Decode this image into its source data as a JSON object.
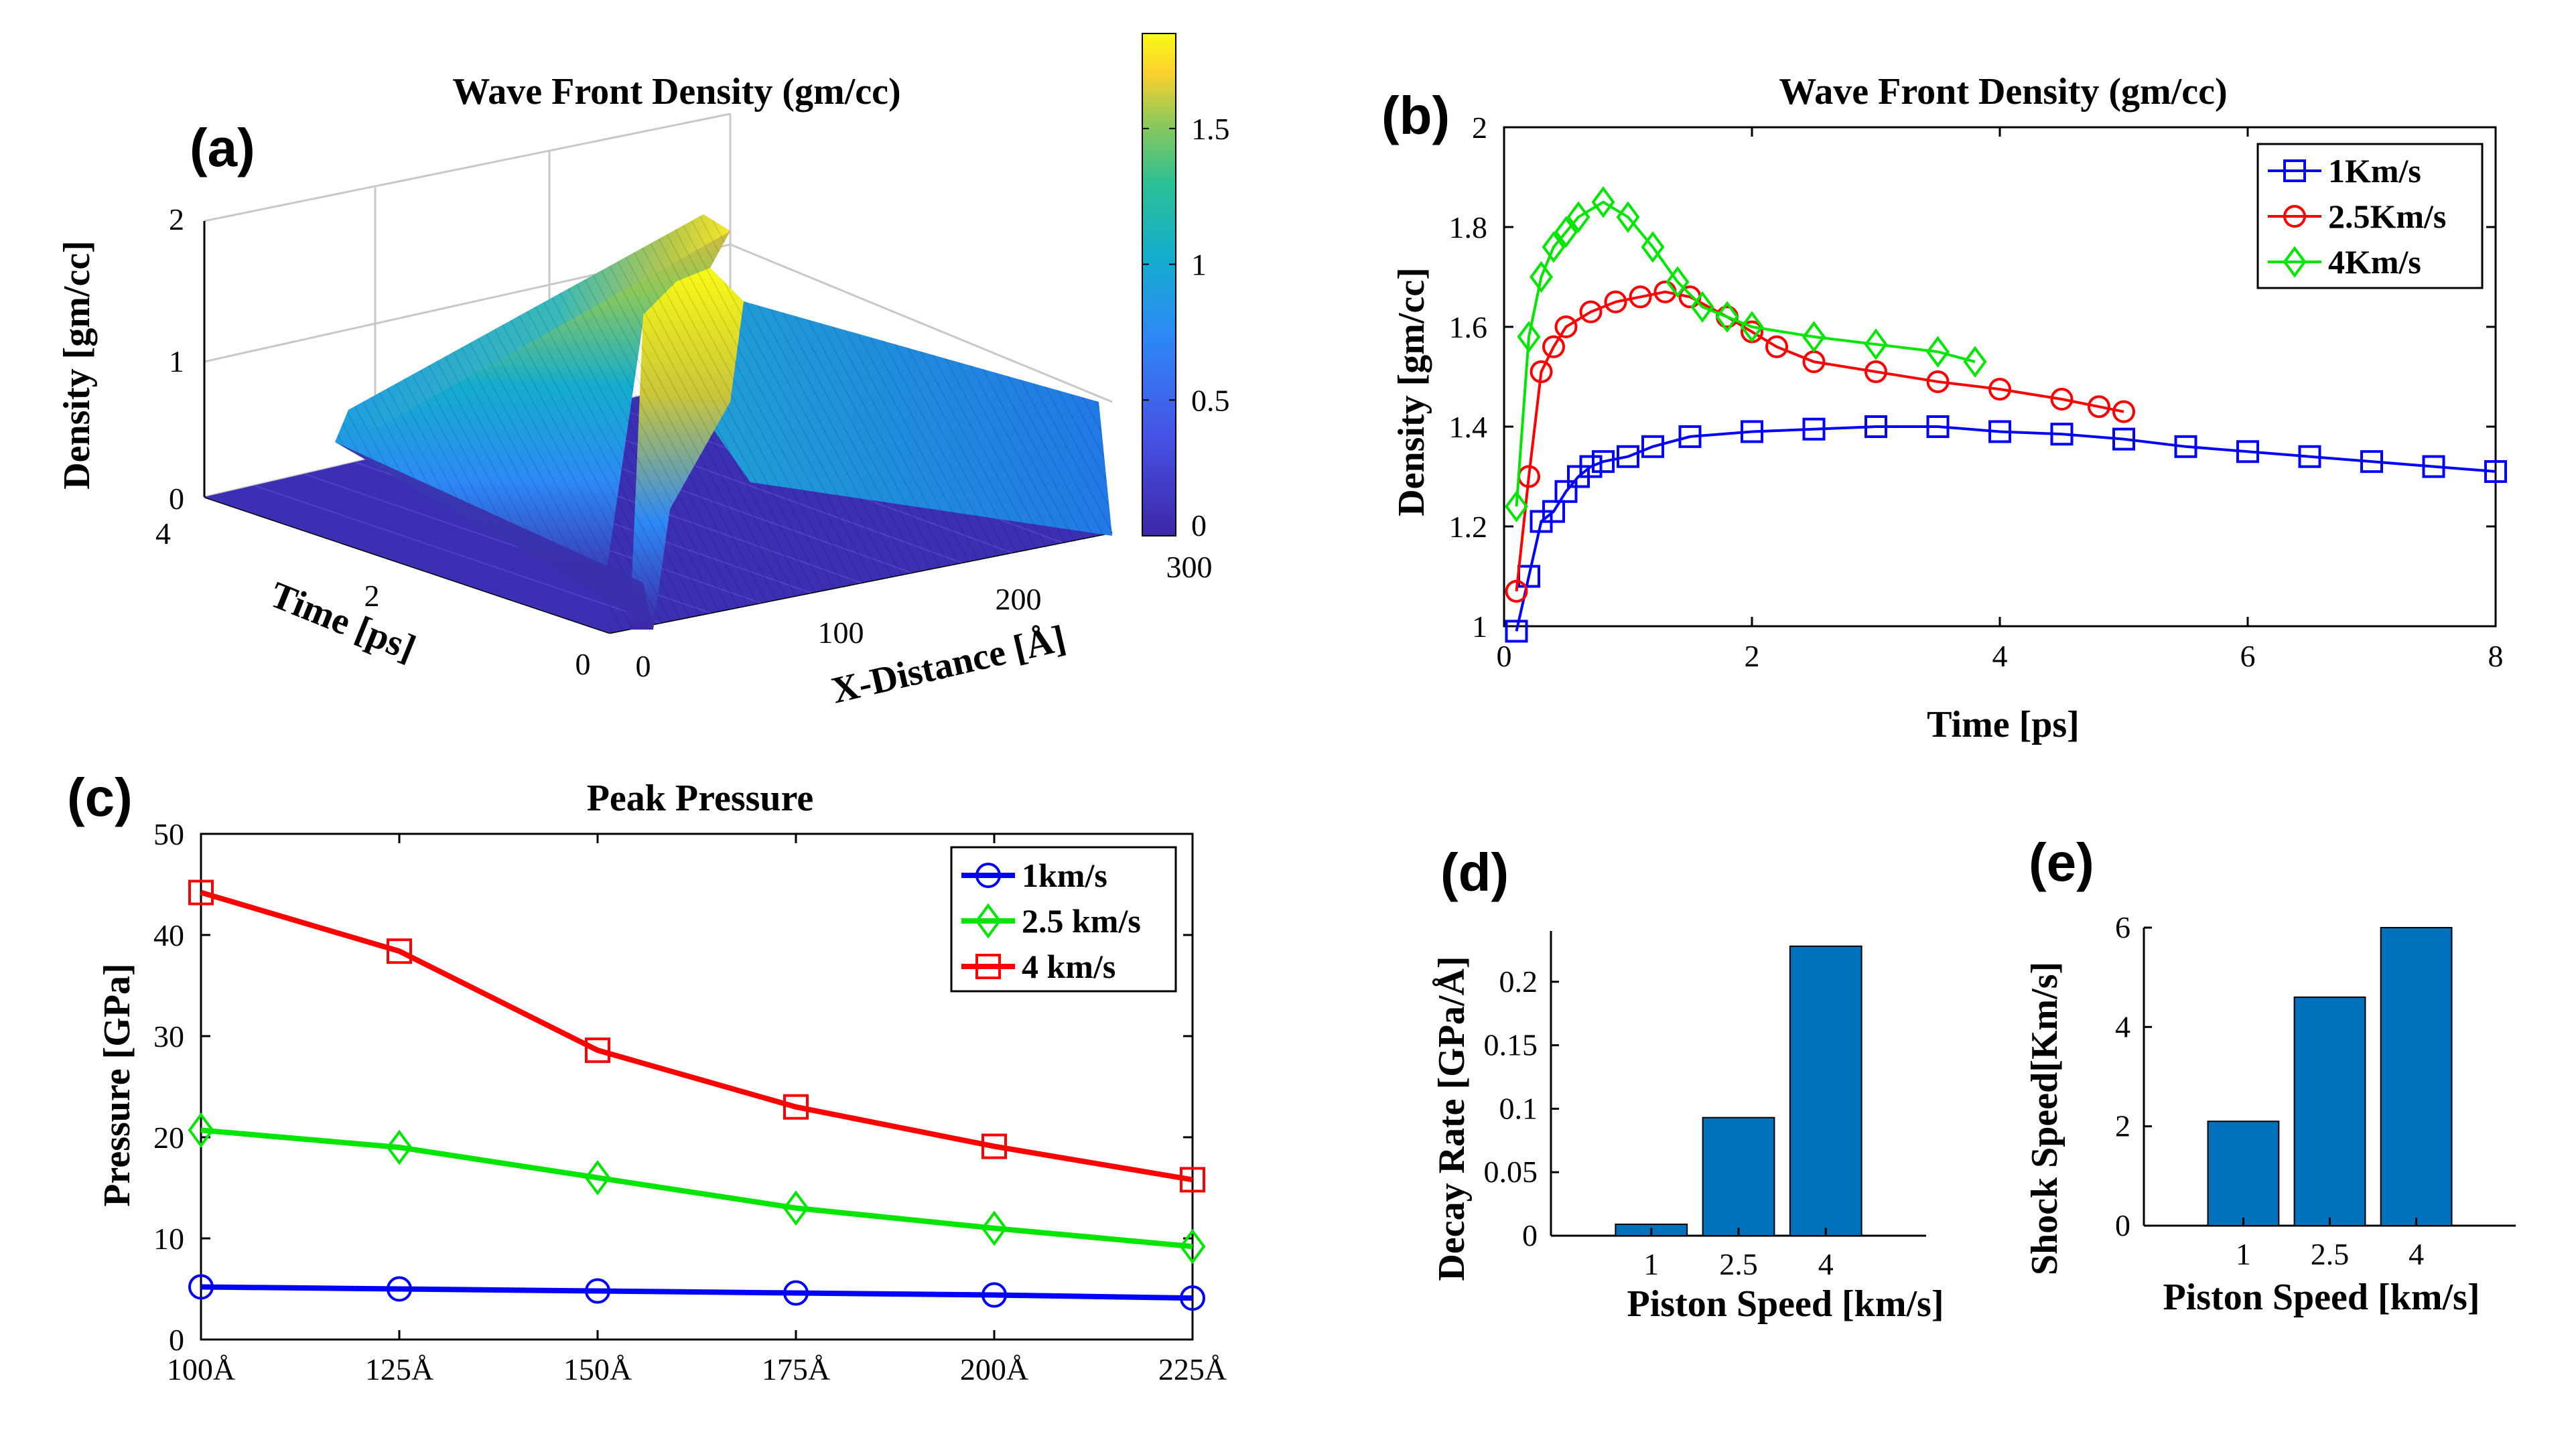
{
  "chart_data": [
    {
      "panel": "(a)",
      "type": "surface",
      "title": "Wave Front Density (gm/cc)",
      "xlabel": "X-Distance [Å]",
      "ylabel": "Time [ps]",
      "zlabel": "Density [gm/cc]",
      "xticks": [
        "0",
        "100",
        "200",
        "300"
      ],
      "yticks": [
        "0",
        "2",
        "4"
      ],
      "zticks": [
        "0",
        "1",
        "2"
      ],
      "xlim": [
        0,
        300
      ],
      "ylim": [
        0,
        4
      ],
      "zlim": [
        0,
        2
      ],
      "colorbar_ticks": [
        "0",
        "0.5",
        "1",
        "1.5"
      ],
      "colorbar_range": [
        0,
        1.85
      ],
      "colormap": [
        "#3e26a8",
        "#4653e6",
        "#2d89f6",
        "#14adcf",
        "#29c095",
        "#8cc95a",
        "#e6b835",
        "#fad02e",
        "#f9fb15"
      ]
    },
    {
      "panel": "(b)",
      "type": "line",
      "title": "Wave Front Density (gm/cc)",
      "xlabel": "Time [ps]",
      "ylabel": "Density [gm/cc]",
      "xlim": [
        0,
        8
      ],
      "ylim": [
        1,
        2
      ],
      "xticks": [
        "0",
        "2",
        "4",
        "6",
        "8"
      ],
      "yticks": [
        "1",
        "1.2",
        "1.4",
        "1.6",
        "1.8",
        "2"
      ],
      "legend_position": "top-right",
      "series": [
        {
          "name": "1Km/s",
          "color": "#0000ff",
          "marker": "square",
          "points": [
            [
              0.1,
              0.99
            ],
            [
              0.2,
              1.1
            ],
            [
              0.3,
              1.21
            ],
            [
              0.4,
              1.23
            ],
            [
              0.5,
              1.27
            ],
            [
              0.6,
              1.3
            ],
            [
              0.7,
              1.32
            ],
            [
              0.8,
              1.33
            ],
            [
              1,
              1.34
            ],
            [
              1.2,
              1.36
            ],
            [
              1.5,
              1.38
            ],
            [
              2,
              1.39
            ],
            [
              2.5,
              1.395
            ],
            [
              3,
              1.4
            ],
            [
              3.5,
              1.4
            ],
            [
              4,
              1.39
            ],
            [
              4.5,
              1.385
            ],
            [
              5,
              1.375
            ],
            [
              5.5,
              1.36
            ],
            [
              6,
              1.35
            ],
            [
              6.5,
              1.34
            ],
            [
              7,
              1.33
            ],
            [
              7.5,
              1.32
            ],
            [
              8,
              1.31
            ]
          ]
        },
        {
          "name": "2.5Km/s",
          "color": "#ff0000",
          "marker": "circle",
          "points": [
            [
              0.1,
              1.07
            ],
            [
              0.2,
              1.3
            ],
            [
              0.3,
              1.51
            ],
            [
              0.4,
              1.56
            ],
            [
              0.5,
              1.6
            ],
            [
              0.7,
              1.63
            ],
            [
              0.9,
              1.65
            ],
            [
              1.1,
              1.66
            ],
            [
              1.3,
              1.67
            ],
            [
              1.5,
              1.66
            ],
            [
              1.8,
              1.62
            ],
            [
              2,
              1.59
            ],
            [
              2.2,
              1.56
            ],
            [
              2.5,
              1.53
            ],
            [
              3,
              1.51
            ],
            [
              3.5,
              1.49
            ],
            [
              4,
              1.475
            ],
            [
              4.5,
              1.455
            ],
            [
              4.8,
              1.44
            ],
            [
              5,
              1.43
            ]
          ]
        },
        {
          "name": "4Km/s",
          "color": "#00e600",
          "marker": "diamond",
          "points": [
            [
              0.1,
              1.24
            ],
            [
              0.2,
              1.58
            ],
            [
              0.3,
              1.7
            ],
            [
              0.4,
              1.76
            ],
            [
              0.5,
              1.79
            ],
            [
              0.6,
              1.82
            ],
            [
              0.8,
              1.85
            ],
            [
              1,
              1.82
            ],
            [
              1.2,
              1.76
            ],
            [
              1.4,
              1.69
            ],
            [
              1.6,
              1.64
            ],
            [
              1.8,
              1.62
            ],
            [
              2,
              1.6
            ],
            [
              2.5,
              1.58
            ],
            [
              3,
              1.565
            ],
            [
              3.5,
              1.55
            ],
            [
              3.8,
              1.53
            ]
          ]
        }
      ]
    },
    {
      "panel": "(c)",
      "type": "line",
      "title": "Peak Pressure",
      "xlabel": "",
      "ylabel": "Pressure [GPa]",
      "categories": [
        "100Å",
        "125Å",
        "150Å",
        "175Å",
        "200Å",
        "225Å"
      ],
      "ylim": [
        0,
        50
      ],
      "yticks": [
        "0",
        "10",
        "20",
        "30",
        "40",
        "50"
      ],
      "legend_position": "top-right",
      "series": [
        {
          "name": "1km/s",
          "color": "#0000ff",
          "marker": "circle",
          "values": [
            5.2,
            5.0,
            4.8,
            4.6,
            4.4,
            4.1
          ]
        },
        {
          "name": "2.5 km/s",
          "color": "#00e600",
          "marker": "diamond",
          "values": [
            20.7,
            19.0,
            16.0,
            13.0,
            11.0,
            9.2
          ]
        },
        {
          "name": "4 km/s",
          "color": "#ff0000",
          "marker": "square",
          "values": [
            44.2,
            38.4,
            28.6,
            23.0,
            19.1,
            15.8
          ]
        }
      ]
    },
    {
      "panel": "(d)",
      "type": "bar",
      "title": "",
      "xlabel": "Piston Speed [km/s]",
      "ylabel": "Decay Rate [GPa/Å]",
      "categories": [
        "1",
        "2.5",
        "4"
      ],
      "values": [
        0.009,
        0.093,
        0.228
      ],
      "ylim": [
        0,
        0.24
      ],
      "yticks": [
        "0",
        "0.05",
        "0.1",
        "0.15",
        "0.2"
      ],
      "bar_color": "#0072bd"
    },
    {
      "panel": "(e)",
      "type": "bar",
      "title": "",
      "xlabel": "Piston Speed [km/s]",
      "ylabel": "Shock Speed[Km/s]",
      "categories": [
        "1",
        "2.5",
        "4"
      ],
      "values": [
        2.1,
        4.6,
        6.0
      ],
      "ylim": [
        0,
        6
      ],
      "yticks": [
        "0",
        "2",
        "4",
        "6"
      ],
      "bar_color": "#0072bd"
    }
  ]
}
